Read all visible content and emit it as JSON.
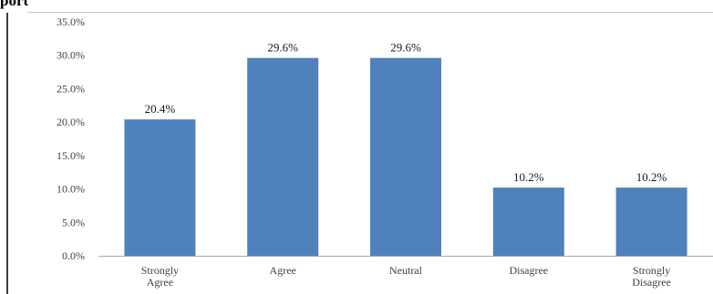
{
  "title": "port",
  "chart_data": {
    "type": "bar",
    "categories": [
      [
        "Strongly",
        "Agree"
      ],
      [
        "Agree"
      ],
      [
        "Neutral"
      ],
      [
        "Disagree"
      ],
      [
        "Strongly",
        "Disagree"
      ]
    ],
    "values": [
      20.4,
      29.6,
      29.6,
      10.2,
      10.2
    ],
    "data_labels": [
      "20.4%",
      "29.6%",
      "29.6%",
      "10.2%",
      "10.2%"
    ],
    "y_ticks": [
      0,
      5,
      10,
      15,
      20,
      25,
      30,
      35
    ],
    "y_tick_labels": [
      "0.0%",
      "5.0%",
      "10.0%",
      "15.0%",
      "20.0%",
      "25.0%",
      "30.0%",
      "35.0%"
    ],
    "ylim": [
      0,
      35
    ],
    "grid": false,
    "legend": "none",
    "bar_color": "#4f81bd",
    "axis_color": "#a6a6a6"
  }
}
